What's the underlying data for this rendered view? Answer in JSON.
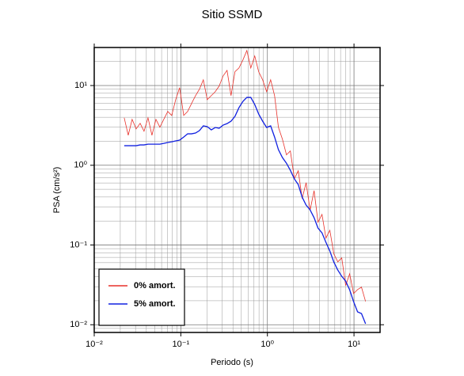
{
  "chart_data": {
    "type": "line",
    "title": "Sitio SSMD",
    "x_label": "Periodo (s)",
    "y_label": "PSA (cm/s²)",
    "log_x": true,
    "log_y": true,
    "grid": true,
    "minor_grid": true,
    "legend": "lower left",
    "xlim": [
      0.01,
      20
    ],
    "ylim": [
      0.008,
      30
    ],
    "xticks": [
      {
        "value": 0.01,
        "label": "10⁻²"
      },
      {
        "value": 0.1,
        "label": "10⁻¹"
      },
      {
        "value": 1,
        "label": "10⁰"
      },
      {
        "value": 10,
        "label": "10¹"
      }
    ],
    "yticks": [
      {
        "value": 0.01,
        "label": "10⁻²"
      },
      {
        "value": 0.1,
        "label": "10⁻¹"
      },
      {
        "value": 1,
        "label": "10⁰"
      },
      {
        "value": 10,
        "label": "10¹"
      }
    ],
    "x": [
      0.0222,
      0.0247,
      0.0274,
      0.0305,
      0.0339,
      0.0376,
      0.0418,
      0.0464,
      0.0516,
      0.0573,
      0.0636,
      0.0707,
      0.0785,
      0.0873,
      0.0969,
      0.108,
      0.12,
      0.133,
      0.148,
      0.164,
      0.182,
      0.202,
      0.225,
      0.25,
      0.277,
      0.308,
      0.342,
      0.38,
      0.422,
      0.469,
      0.521,
      0.579,
      0.643,
      0.714,
      0.793,
      0.881,
      0.979,
      1.09,
      1.21,
      1.34,
      1.49,
      1.66,
      1.84,
      2.05,
      2.27,
      2.52,
      2.8,
      3.11,
      3.46,
      3.84,
      4.27,
      4.74,
      5.26,
      5.85,
      6.5,
      7.22,
      8.02,
      8.91,
      9.89,
      11.0,
      12.2,
      13.6
    ],
    "series": [
      {
        "name": "0% amort.",
        "color": "#e8312a",
        "width": 0.8,
        "values": [
          3.94,
          2.38,
          3.77,
          2.86,
          3.36,
          2.67,
          3.94,
          2.38,
          3.77,
          3.0,
          3.77,
          4.73,
          4.22,
          6.67,
          9.4,
          4.22,
          4.73,
          5.95,
          7.48,
          8.99,
          11.8,
          6.67,
          7.48,
          8.39,
          9.84,
          13.2,
          15.5,
          7.48,
          14.9,
          16.6,
          20.9,
          27.5,
          16.6,
          23.5,
          14.9,
          11.8,
          8.39,
          11.8,
          7.48,
          3.0,
          2.13,
          1.35,
          1.51,
          0.678,
          0.852,
          0.383,
          0.605,
          0.272,
          0.481,
          0.193,
          0.242,
          0.122,
          0.153,
          0.0773,
          0.0615,
          0.0689,
          0.031,
          0.0436,
          0.0246,
          0.0276,
          0.0296,
          0.0196
        ]
      },
      {
        "name": "5% amort.",
        "color": "#1020e0",
        "width": 1.3,
        "values": [
          1.76,
          1.76,
          1.76,
          1.76,
          1.8,
          1.8,
          1.84,
          1.84,
          1.84,
          1.84,
          1.88,
          1.93,
          1.97,
          2.02,
          2.07,
          2.26,
          2.48,
          2.48,
          2.54,
          2.72,
          3.12,
          3.05,
          2.78,
          2.98,
          2.91,
          3.19,
          3.33,
          3.57,
          4.1,
          5.27,
          6.32,
          7.1,
          7.1,
          5.78,
          4.39,
          3.57,
          2.98,
          3.12,
          2.26,
          1.57,
          1.25,
          1.06,
          0.865,
          0.673,
          0.574,
          0.398,
          0.316,
          0.276,
          0.22,
          0.163,
          0.142,
          0.108,
          0.0841,
          0.0611,
          0.0485,
          0.0405,
          0.0352,
          0.0274,
          0.0195,
          0.0145,
          0.0138,
          0.0103
        ]
      }
    ]
  }
}
